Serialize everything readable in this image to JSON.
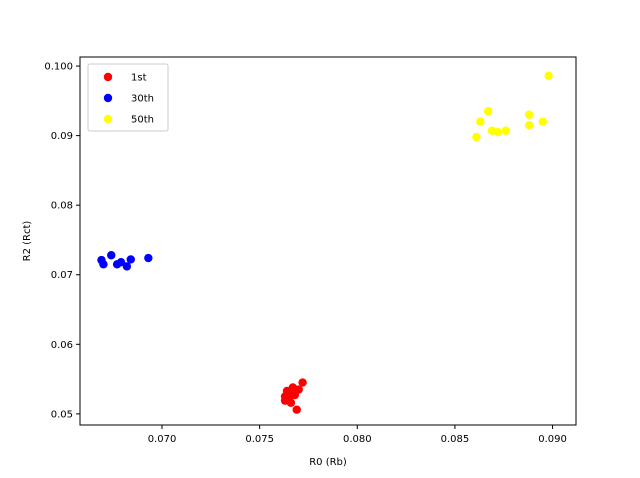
{
  "chart_data": {
    "type": "scatter",
    "xlabel": "R0 (Rb)",
    "ylabel": "R2 (Rct)",
    "xlim": [
      0.0658,
      0.0912
    ],
    "ylim": [
      0.0484,
      0.1013
    ],
    "xticks": [
      {
        "value": 0.07,
        "label": "0.070"
      },
      {
        "value": 0.075,
        "label": "0.075"
      },
      {
        "value": 0.08,
        "label": "0.080"
      },
      {
        "value": 0.085,
        "label": "0.085"
      },
      {
        "value": 0.09,
        "label": "0.090"
      }
    ],
    "yticks": [
      {
        "value": 0.05,
        "label": "0.05"
      },
      {
        "value": 0.06,
        "label": "0.06"
      },
      {
        "value": 0.07,
        "label": "0.07"
      },
      {
        "value": 0.08,
        "label": "0.08"
      },
      {
        "value": 0.09,
        "label": "0.09"
      },
      {
        "value": 0.1,
        "label": "0.100"
      }
    ],
    "grid": false,
    "legend_position": "upper-left",
    "series": [
      {
        "name": "1st",
        "color": "#ff0000",
        "points": [
          [
            0.0772,
            0.0545
          ],
          [
            0.077,
            0.0535
          ],
          [
            0.0767,
            0.0538
          ],
          [
            0.0764,
            0.0533
          ],
          [
            0.0766,
            0.053
          ],
          [
            0.0768,
            0.0527
          ],
          [
            0.0763,
            0.0525
          ],
          [
            0.0765,
            0.0522
          ],
          [
            0.0763,
            0.0519
          ],
          [
            0.0766,
            0.0516
          ],
          [
            0.0769,
            0.0506
          ]
        ]
      },
      {
        "name": "30th",
        "color": "#0000ff",
        "points": [
          [
            0.0669,
            0.0721
          ],
          [
            0.067,
            0.0715
          ],
          [
            0.0674,
            0.0728
          ],
          [
            0.0677,
            0.0715
          ],
          [
            0.0679,
            0.0718
          ],
          [
            0.0682,
            0.0712
          ],
          [
            0.0684,
            0.0722
          ],
          [
            0.0693,
            0.0724
          ]
        ]
      },
      {
        "name": "50th",
        "color": "#ffff00",
        "points": [
          [
            0.0861,
            0.0898
          ],
          [
            0.0863,
            0.092
          ],
          [
            0.0867,
            0.0935
          ],
          [
            0.0869,
            0.0907
          ],
          [
            0.0872,
            0.0905
          ],
          [
            0.0876,
            0.0907
          ],
          [
            0.0888,
            0.0915
          ],
          [
            0.0888,
            0.093
          ],
          [
            0.0895,
            0.092
          ],
          [
            0.0898,
            0.0986
          ]
        ]
      }
    ]
  }
}
